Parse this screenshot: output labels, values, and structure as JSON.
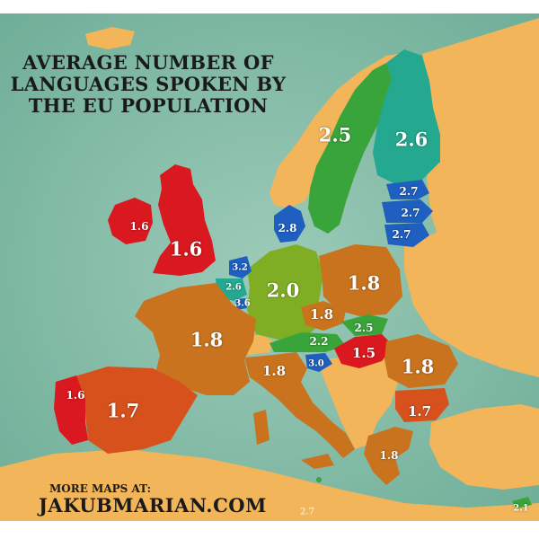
{
  "title": {
    "line1": "AVERAGE NUMBER OF",
    "line2": "LANGUAGES SPOKEN BY",
    "line3": "THE EU POPULATION"
  },
  "footer": {
    "prefix": "MORE MAPS AT:",
    "site": "JAKUBMARIAN.COM"
  },
  "colors": {
    "sea": "#8fc2b0",
    "non_eu_land": "#f2b55a",
    "red": "#d9181f",
    "orange_red": "#d6511c",
    "orange": "#c9731e",
    "yellow_green": "#7fae24",
    "green": "#38a43a",
    "teal": "#25a890",
    "blue": "#1e5fc0"
  },
  "countries": {
    "ireland": "1.6",
    "uk": "1.6",
    "sweden": "2.5",
    "finland": "2.6",
    "estonia": "2.7",
    "latvia": "2.7",
    "lithuania": "2.7",
    "denmark": "2.8",
    "netherlands": "3.2",
    "belgium": "2.6",
    "luxembourg": "3.6",
    "germany": "2.0",
    "poland": "1.8",
    "czechia": "1.8",
    "slovakia": "2.5",
    "austria": "2.2",
    "hungary": "1.5",
    "slovenia": "3.0",
    "france": "1.8",
    "italy": "1.8",
    "romania": "1.8",
    "bulgaria": "1.7",
    "greece": "1.8",
    "portugal": "1.6",
    "spain": "1.7",
    "malta": "2.7",
    "cyprus": "2.1"
  }
}
